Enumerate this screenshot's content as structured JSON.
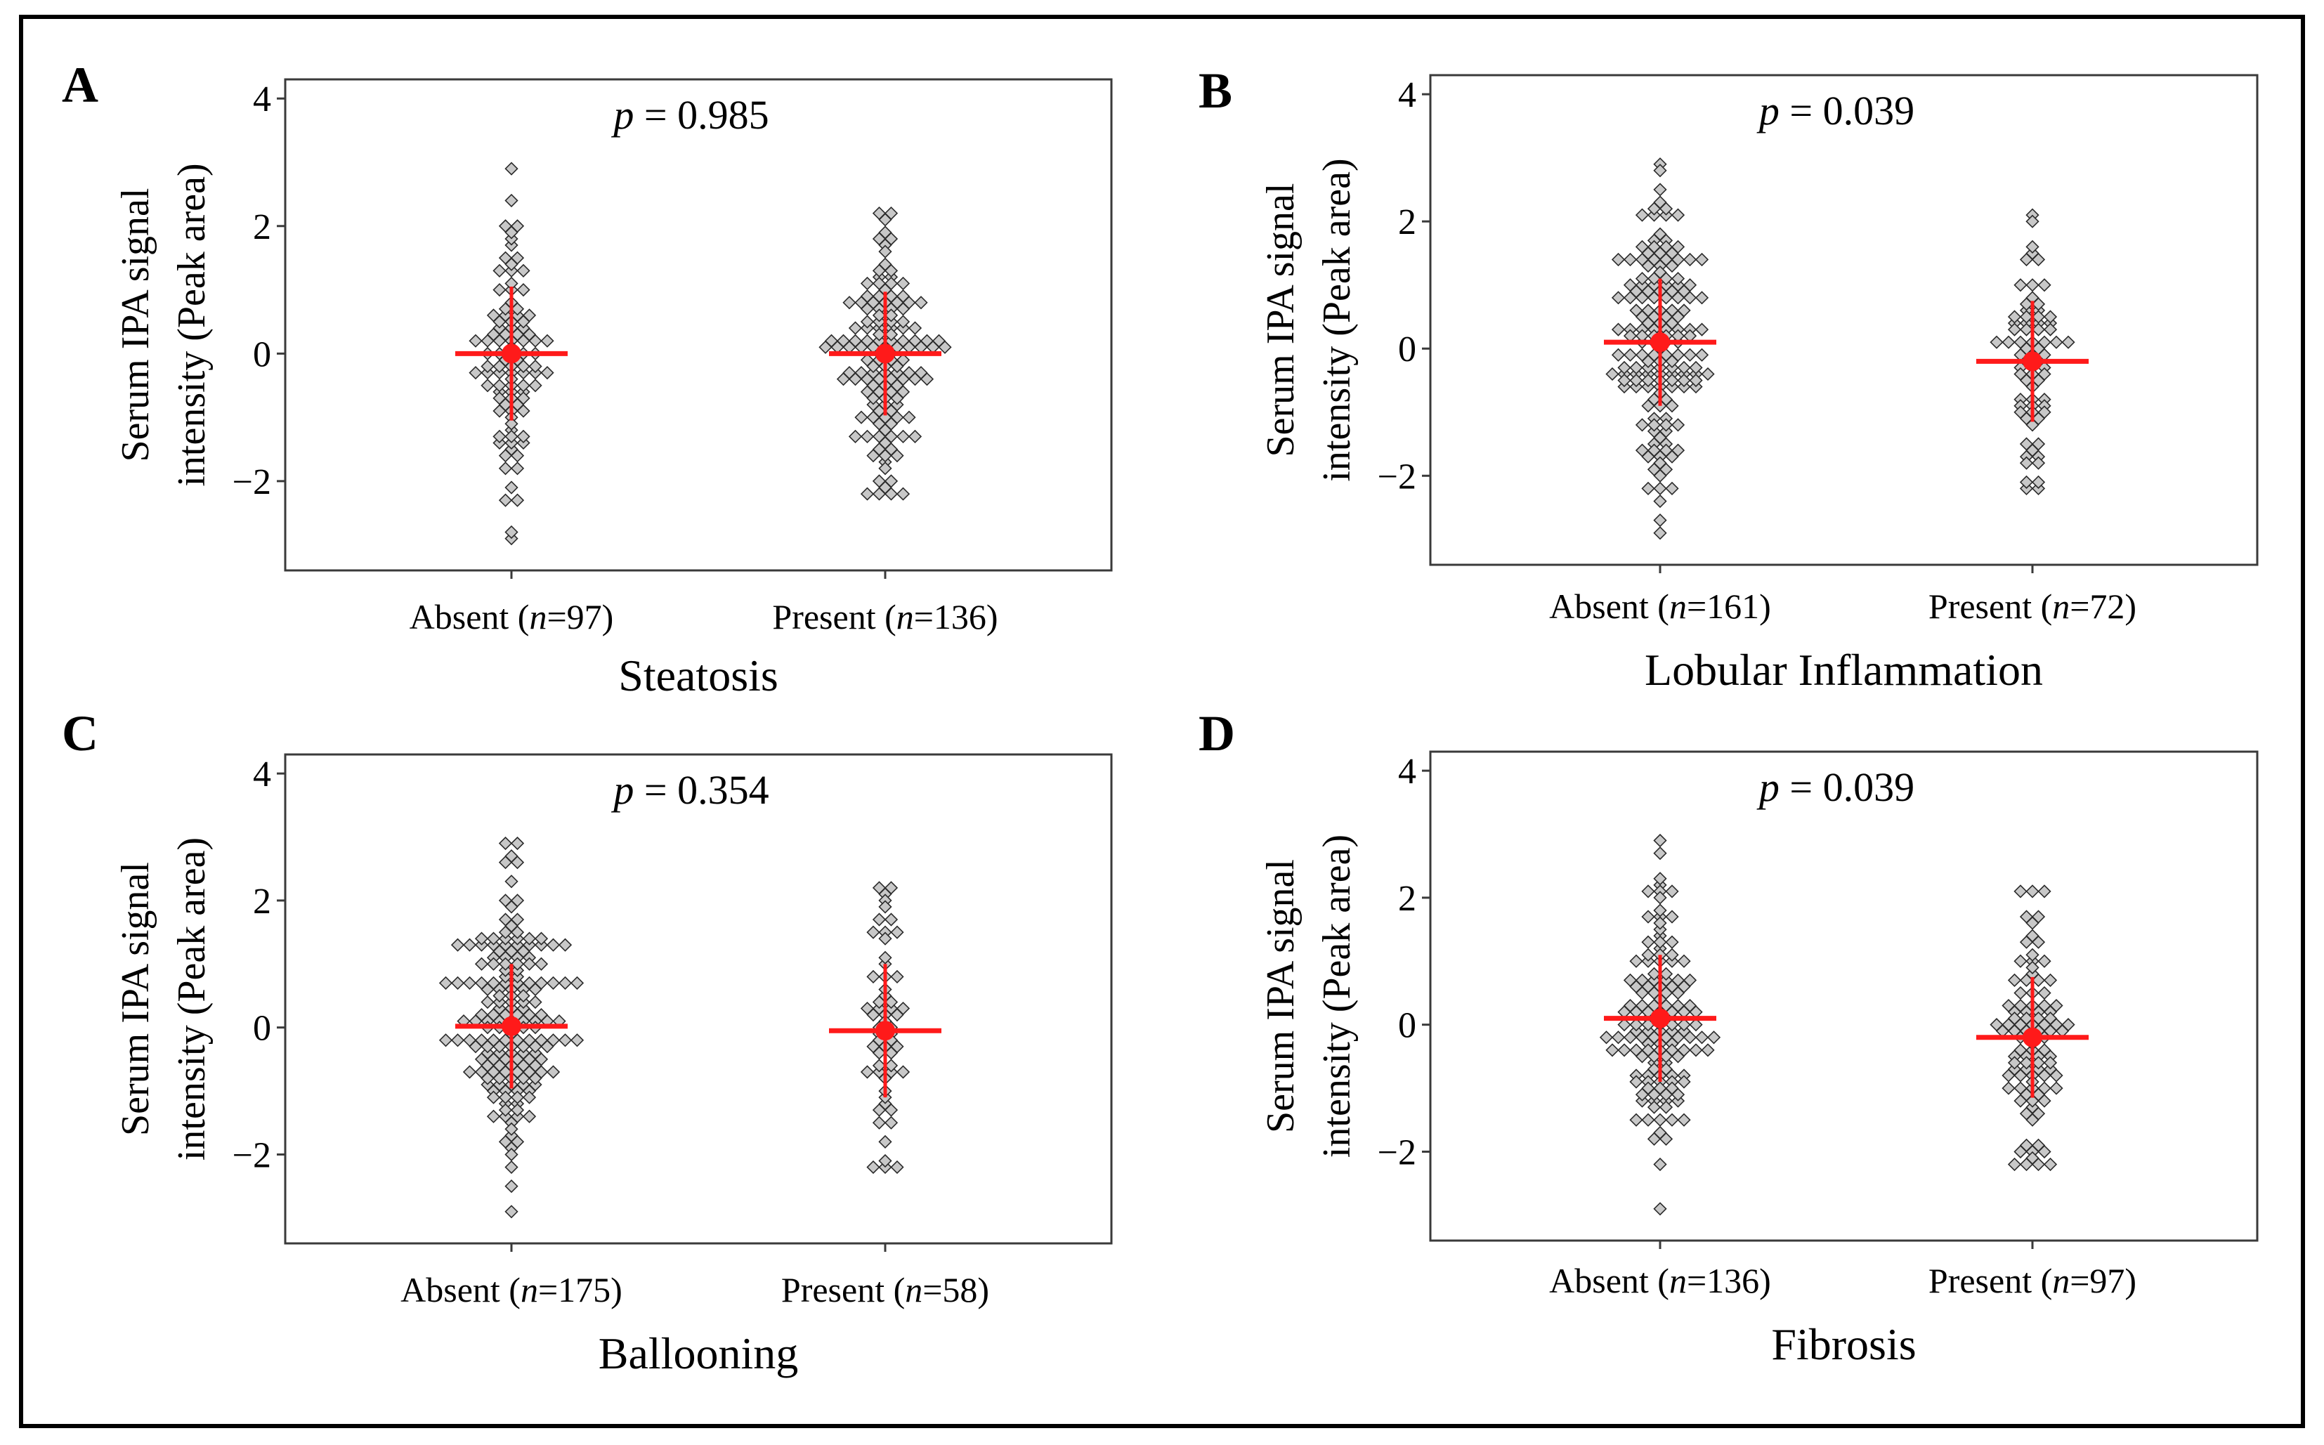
{
  "colors": {
    "frame": "#000000",
    "axis": "#3a3a3a",
    "point_fill": "#c8c8c8",
    "point_stroke": "#2a2a2a",
    "summary": "#ff1a1a"
  },
  "chart_data": [
    {
      "panel": "A",
      "type": "scatter",
      "subtype": "beeswarm with mean ± SD",
      "p_prefix": "p",
      "p_text": "= 0.985",
      "xlabel": "Steatosis",
      "ylabel_line1": "Serum IPA signal",
      "ylabel_line2": "intensity (Peak area)",
      "yticks": [
        4,
        2,
        0,
        -2
      ],
      "ytick_labels": [
        "4",
        "2",
        "0",
        "−2"
      ],
      "ylim": [
        -3.4,
        4.3
      ],
      "groups": [
        {
          "name": "Absent",
          "n_label": "n",
          "n_text": "=97",
          "n": 97,
          "mean": 0.0,
          "sd": 1.05,
          "min": -2.85,
          "max": 2.9
        },
        {
          "name": "Present",
          "n_label": "n",
          "n_text": "=136",
          "n": 136,
          "mean": 0.0,
          "sd": 0.97,
          "min": -2.2,
          "max": 2.2
        }
      ]
    },
    {
      "panel": "B",
      "type": "scatter",
      "subtype": "beeswarm with mean ± SD",
      "p_prefix": "p",
      "p_text": "= 0.039",
      "xlabel": "Lobular Inflammation",
      "ylabel_line1": "Serum IPA signal",
      "ylabel_line2": "intensity (Peak area)",
      "yticks": [
        4,
        2,
        0,
        -2
      ],
      "ytick_labels": [
        "4",
        "2",
        "0",
        "−2"
      ],
      "ylim": [
        -3.4,
        4.3
      ],
      "groups": [
        {
          "name": "Absent",
          "n_label": "n",
          "n_text": "=161",
          "n": 161,
          "mean": 0.1,
          "sd": 1.0,
          "min": -2.85,
          "max": 2.9
        },
        {
          "name": "Present",
          "n_label": "n",
          "n_text": "=72",
          "n": 72,
          "mean": -0.2,
          "sd": 0.95,
          "min": -2.2,
          "max": 2.1
        }
      ]
    },
    {
      "panel": "C",
      "type": "scatter",
      "subtype": "beeswarm with mean ± SD",
      "p_prefix": "p",
      "p_text": "= 0.354",
      "xlabel": "Ballooning",
      "ylabel_line1": "Serum IPA signal",
      "ylabel_line2": "intensity (Peak area)",
      "yticks": [
        4,
        2,
        0,
        -2
      ],
      "ytick_labels": [
        "4",
        "2",
        "0",
        "−2"
      ],
      "ylim": [
        -3.4,
        4.3
      ],
      "groups": [
        {
          "name": "Absent",
          "n_label": "n",
          "n_text": "=175",
          "n": 175,
          "mean": 0.02,
          "sd": 0.98,
          "min": -2.85,
          "max": 2.9
        },
        {
          "name": "Present",
          "n_label": "n",
          "n_text": "=58",
          "n": 58,
          "mean": -0.05,
          "sd": 1.05,
          "min": -2.2,
          "max": 2.2
        }
      ]
    },
    {
      "panel": "D",
      "type": "scatter",
      "subtype": "beeswarm with mean ± SD",
      "p_prefix": "p",
      "p_text": "= 0.039",
      "xlabel": "Fibrosis",
      "ylabel_line1": "Serum IPA signal",
      "ylabel_line2": "intensity (Peak area)",
      "yticks": [
        4,
        2,
        0,
        -2
      ],
      "ytick_labels": [
        "4",
        "2",
        "0",
        "−2"
      ],
      "ylim": [
        -3.4,
        4.3
      ],
      "groups": [
        {
          "name": "Absent",
          "n_label": "n",
          "n_text": "=136",
          "n": 136,
          "mean": 0.1,
          "sd": 1.0,
          "min": -2.85,
          "max": 2.9
        },
        {
          "name": "Present",
          "n_label": "n",
          "n_text": "=97",
          "n": 97,
          "mean": -0.2,
          "sd": 0.95,
          "min": -2.2,
          "max": 2.1
        }
      ]
    }
  ]
}
